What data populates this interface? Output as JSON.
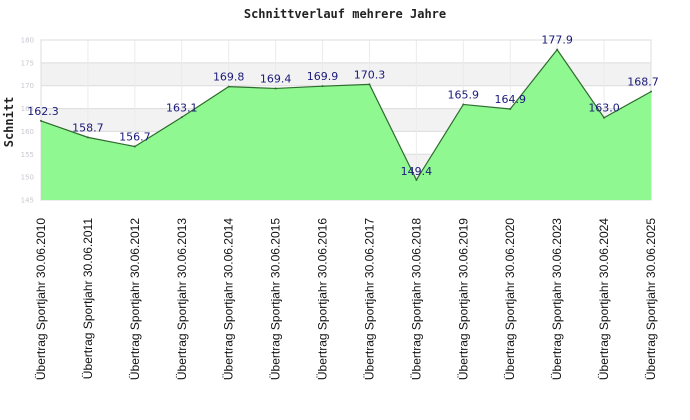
{
  "chart_data": {
    "type": "area",
    "title": "Schnittverlauf mehrere Jahre",
    "ylabel": "Schnitt",
    "xlabel": "",
    "ylim": [
      145,
      180
    ],
    "yticks": [
      145,
      150,
      155,
      160,
      165,
      170,
      175,
      180
    ],
    "grid": true,
    "fill_color": "#90f890",
    "line_color": "#2e6b2e",
    "label_color": "#1a1a7a",
    "categories": [
      "Übertrag Sportjahr 30.06.2010",
      "Übertrag Sportjahr 30.06.2011",
      "Übertrag Sportjahr 30.06.2012",
      "Übertrag Sportjahr 30.06.2013",
      "Übertrag Sportjahr 30.06.2014",
      "Übertrag Sportjahr 30.06.2015",
      "Übertrag Sportjahr 30.06.2016",
      "Übertrag Sportjahr 30.06.2017",
      "Übertrag Sportjahr 30.06.2018",
      "Übertrag Sportjahr 30.06.2019",
      "Übertrag Sportjahr 30.06.2020",
      "Übertrag Sportjahr 30.06.2023",
      "Übertrag Sportjahr 30.06.2024",
      "Übertrag Sportjahr 30.06.2025"
    ],
    "values": [
      162.3,
      158.7,
      156.7,
      163.1,
      169.8,
      169.4,
      169.9,
      170.3,
      149.4,
      165.9,
      164.9,
      177.9,
      163.0,
      168.7
    ],
    "data_labels": [
      "162.3",
      "158.7",
      "156.7",
      "163.1",
      "169.8",
      "169.4",
      "169.9",
      "170.3",
      "149.4",
      "165.9",
      "164.9",
      "177.9",
      "163.0",
      "168.7"
    ]
  }
}
